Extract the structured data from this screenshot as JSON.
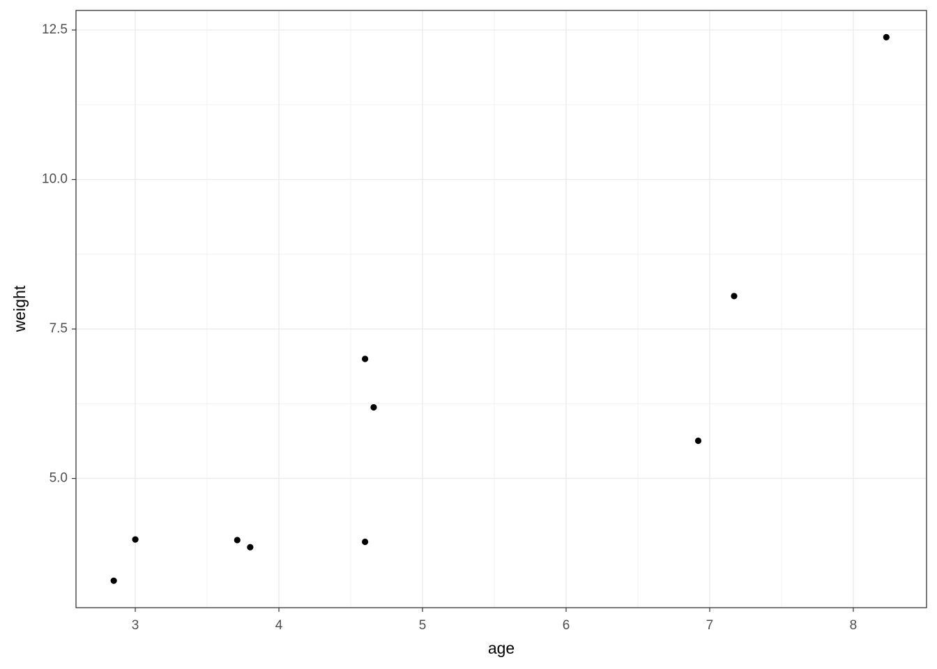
{
  "chart_data": {
    "type": "scatter",
    "x_label": "age",
    "y_label": "weight",
    "x": [
      2.85,
      3.0,
      3.71,
      3.8,
      4.6,
      4.66,
      4.6,
      6.92,
      7.17,
      8.23
    ],
    "series": [
      {
        "color": "#000000",
        "values": [
          3.29,
          3.98,
          3.97,
          3.85,
          7.0,
          6.19,
          3.94,
          5.63,
          8.05,
          12.38
        ]
      }
    ],
    "xlim": [
      2.587,
      8.51
    ],
    "ylim": [
      2.839,
      12.827
    ],
    "xticks": [
      3,
      4,
      5,
      6,
      7,
      8
    ],
    "yticks": [
      {
        "value": 5,
        "label": "5.0"
      },
      7.5,
      {
        "value": 10,
        "label": "10.0"
      },
      12.5
    ],
    "grid": true
  }
}
